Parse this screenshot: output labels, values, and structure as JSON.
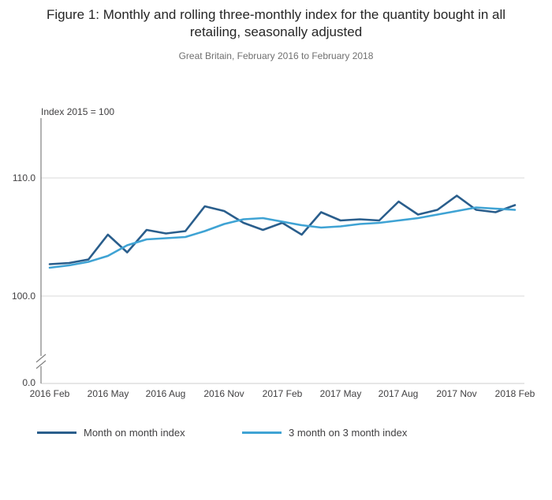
{
  "header": {
    "title": "Figure 1: Monthly and rolling three-monthly index for the quantity bought in all retailing, seasonally adjusted",
    "subtitle": "Great Britain, February 2016 to February 2018"
  },
  "chart_data": {
    "type": "line",
    "title": "Figure 1: Monthly and rolling three-monthly index for the quantity bought in all retailing, seasonally adjusted",
    "subtitle": "Great Britain, February 2016 to February 2018",
    "y_axis_label": "Index 2015 = 100",
    "xlabel": "",
    "ylabel": "Index 2015 = 100",
    "y_ticks": [
      "110.0",
      "100.0",
      "0.0"
    ],
    "y_gridlines": [
      110,
      100
    ],
    "axis_break_above_zero": true,
    "ylim_plotted": [
      99.5,
      112
    ],
    "legend_position": "bottom",
    "grid": "horizontal",
    "x_ticks": [
      "2016 Feb",
      "2016 May",
      "2016 Aug",
      "2016 Nov",
      "2017 Feb",
      "2017 May",
      "2017 Aug",
      "2017 Nov",
      "2018 Feb"
    ],
    "x": [
      "2016 Feb",
      "2016 Mar",
      "2016 Apr",
      "2016 May",
      "2016 Jun",
      "2016 Jul",
      "2016 Aug",
      "2016 Sep",
      "2016 Oct",
      "2016 Nov",
      "2016 Dec",
      "2017 Jan",
      "2017 Feb",
      "2017 Mar",
      "2017 Apr",
      "2017 May",
      "2017 Jun",
      "2017 Jul",
      "2017 Aug",
      "2017 Sep",
      "2017 Oct",
      "2017 Nov",
      "2017 Dec",
      "2018 Jan",
      "2018 Feb"
    ],
    "series": [
      {
        "id": "month-on-month",
        "name": "Month on month index",
        "color": "#2a5e8c",
        "width": 2.6,
        "values": [
          102.7,
          102.8,
          103.1,
          105.2,
          103.7,
          105.6,
          105.3,
          105.5,
          107.6,
          107.2,
          106.2,
          105.6,
          106.2,
          105.2,
          107.1,
          106.4,
          106.5,
          106.4,
          108.0,
          106.9,
          107.3,
          108.5,
          107.3,
          107.1,
          107.7
        ]
      },
      {
        "id": "3-month-on-3-month",
        "name": "3 month on 3 month index",
        "color": "#3fa3d4",
        "width": 2.6,
        "values": [
          102.4,
          102.6,
          102.9,
          103.4,
          104.3,
          104.8,
          104.9,
          105.0,
          105.5,
          106.1,
          106.5,
          106.6,
          106.3,
          106.0,
          105.8,
          105.9,
          106.1,
          106.2,
          106.4,
          106.6,
          106.9,
          107.2,
          107.5,
          107.4,
          107.3
        ]
      }
    ]
  },
  "colors": {
    "gridline": "#d9d9d9",
    "axis": "#808080",
    "text": "#414042"
  }
}
